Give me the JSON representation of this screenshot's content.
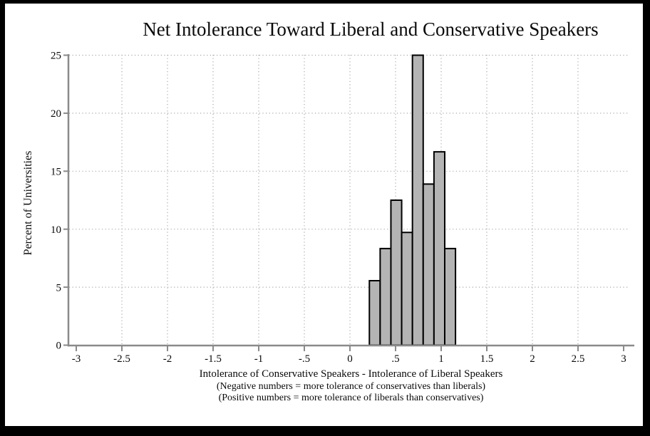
{
  "chart_data": {
    "type": "bar",
    "subtype": "histogram",
    "title": "Net Intolerance Toward Liberal and Conservative Speakers",
    "ylabel": "Percent of Universities",
    "xlabel": "Intolerance of Conservative Speakers - Intolerance of Liberal Speakers",
    "xlabel_note_negative": "(Negative numbers = more tolerance of conservatives than liberals)",
    "xlabel_note_positive": "(Positive numbers = more tolerance of liberals than conservatives)",
    "xlim": [
      -3,
      3
    ],
    "ylim": [
      0,
      25
    ],
    "x_ticks": [
      {
        "value": -3,
        "label": "-3"
      },
      {
        "value": -2.5,
        "label": "-2.5"
      },
      {
        "value": -2,
        "label": "-2"
      },
      {
        "value": -1.5,
        "label": "-1.5"
      },
      {
        "value": -1,
        "label": "-1"
      },
      {
        "value": -0.5,
        "label": "-.5"
      },
      {
        "value": 0,
        "label": "0"
      },
      {
        "value": 0.5,
        "label": ".5"
      },
      {
        "value": 1,
        "label": "1"
      },
      {
        "value": 1.5,
        "label": "1.5"
      },
      {
        "value": 2,
        "label": "2"
      },
      {
        "value": 2.5,
        "label": "2.5"
      },
      {
        "value": 3,
        "label": "3"
      }
    ],
    "y_ticks": [
      {
        "value": 0,
        "label": "0"
      },
      {
        "value": 5,
        "label": "5"
      },
      {
        "value": 10,
        "label": "10"
      },
      {
        "value": 15,
        "label": "15"
      },
      {
        "value": 20,
        "label": "20"
      },
      {
        "value": 25,
        "label": "25"
      }
    ],
    "grid": {
      "style": "dotted",
      "x_lines": [
        -2.5,
        -2,
        -1.5,
        -1,
        -0.5,
        0,
        0.5,
        1,
        1.5,
        2,
        2.5
      ],
      "y_lines": [
        5,
        10,
        15,
        20,
        25
      ]
    },
    "bins": {
      "start": 0.213,
      "width": 0.118
    },
    "values": [
      5.56,
      8.33,
      12.5,
      9.72,
      25,
      13.89,
      16.67,
      8.33
    ],
    "colors": {
      "bar_fill": "#b4b4b4",
      "bar_border": "#000000",
      "axis": "#8a8a8a",
      "grid_dots": "#a8a8a8",
      "text": "#0a0a0a",
      "frame": "#000000",
      "background": "#ffffff"
    }
  }
}
